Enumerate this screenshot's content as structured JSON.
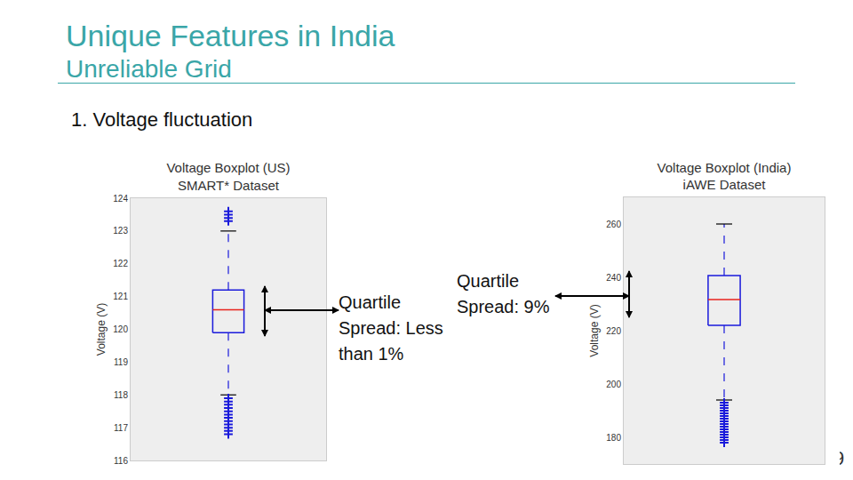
{
  "slide": {
    "title": "Unique Features in India",
    "subtitle": "Unreliable Grid",
    "heading": "1. Voltage fluctuation",
    "page": "9"
  },
  "annotations": [
    {
      "lines": [
        "Quartile",
        "Spread: Less",
        "than 1%"
      ]
    },
    {
      "lines": [
        "Quartile",
        "Spread: 9%"
      ]
    }
  ],
  "chart_data": [
    {
      "type": "box",
      "title": "Voltage Boxplot (US)\nSMART* Dataset",
      "y_label": "Voltage (V)",
      "ylim": [
        116,
        124
      ],
      "yticks": [
        116,
        117,
        118,
        119,
        120,
        121,
        122,
        123,
        124
      ],
      "q1": 119.9,
      "median": 120.6,
      "q3": 121.2,
      "whisker_low": 118.0,
      "whisker_high": 123.0,
      "outliers": [
        123.3,
        123.4,
        123.5,
        123.6,
        117.9,
        117.8,
        117.7,
        117.6,
        117.5,
        117.4,
        117.3,
        117.2,
        117.1,
        117.0,
        116.9,
        116.8
      ],
      "color": "#1a1adb",
      "marker": "plus",
      "grid": false,
      "tick_labels": "y"
    },
    {
      "type": "box",
      "title": "Voltage Boxplot (India)\niAWE Dataset",
      "y_label": "Voltage (V)",
      "ylim": [
        170,
        270
      ],
      "yticks": [
        180,
        200,
        220,
        240,
        260
      ],
      "q1": 222,
      "median": 231.7,
      "q3": 240.7,
      "whisker_low": 194,
      "whisker_high": 260,
      "outliers": [
        193,
        192,
        191,
        190,
        189,
        188,
        187,
        186,
        185,
        184,
        183,
        182,
        181,
        180,
        179,
        178
      ],
      "color": "#1a1adb",
      "marker": "plus",
      "grid": false,
      "tick_labels": "y"
    }
  ]
}
